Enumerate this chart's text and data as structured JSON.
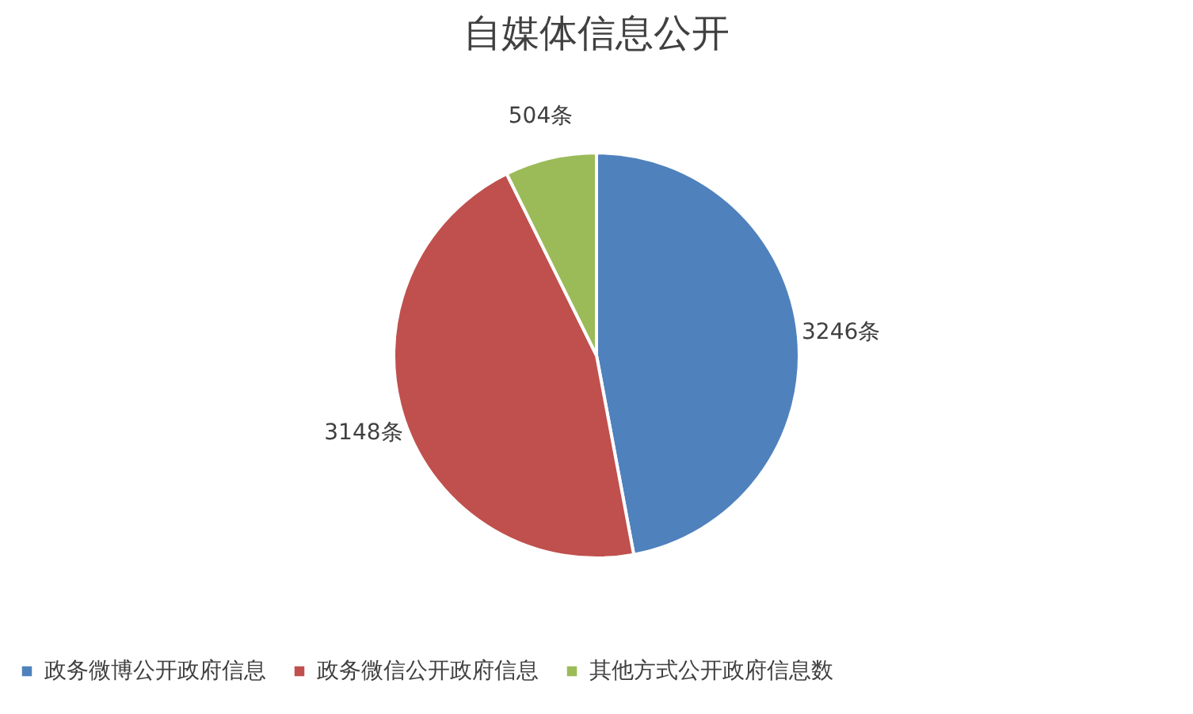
{
  "chart_data": {
    "type": "pie",
    "title": "自媒体信息公开",
    "categories": [
      "政务微博公开政府信息",
      "政务微信公开政府信息",
      "其他方式公开政府信息数"
    ],
    "values": [
      3246,
      3148,
      504
    ],
    "colors": [
      "#4f81bd",
      "#c0504d",
      "#9bbb59"
    ],
    "value_labels": [
      "3246条",
      "3148条",
      "504条"
    ],
    "legend": "bottom"
  }
}
